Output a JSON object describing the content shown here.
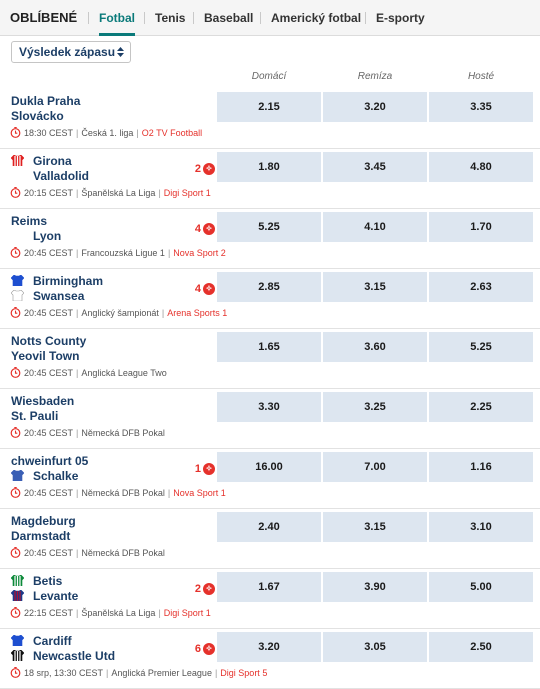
{
  "tabs": {
    "title": "OBLÍBENÉ",
    "items": [
      {
        "label": "Fotbal",
        "active": true
      },
      {
        "label": "Tenis",
        "active": false
      },
      {
        "label": "Baseball",
        "active": false
      },
      {
        "label": "Americký fotbal",
        "active": false
      },
      {
        "label": "E-sporty",
        "active": false
      }
    ]
  },
  "market_select": {
    "value": "Výsledek zápasu"
  },
  "columns": {
    "home": "Domácí",
    "draw": "Remíza",
    "away": "Hosté"
  },
  "colors": {
    "accent": "#0a7a7a",
    "odds_bg": "#dde6f0",
    "tv_red": "#e5312b",
    "team_blue": "#1c3e66"
  },
  "matches": [
    {
      "home": "Dukla Praha",
      "away": "Slovácko",
      "home_jersey": null,
      "away_jersey": null,
      "live_count": "",
      "odds": [
        "2.15",
        "3.20",
        "3.35"
      ],
      "time": "18:30 CEST",
      "league": "Česká 1. liga",
      "tv": "O2 TV Football"
    },
    {
      "home": "Girona",
      "away": "Valladolid",
      "home_jersey": {
        "primary": "#e02020",
        "stripe": "#ffffff"
      },
      "away_jersey": null,
      "live_count": "2",
      "odds": [
        "1.80",
        "3.45",
        "4.80"
      ],
      "time": "20:15 CEST",
      "league": "Španělská La Liga",
      "tv": "Digi Sport 1"
    },
    {
      "home": "Reims",
      "away": "Lyon",
      "home_jersey": null,
      "away_jersey": null,
      "live_count": "4",
      "odds": [
        "5.25",
        "4.10",
        "1.70"
      ],
      "time": "20:45 CEST",
      "league": "Francouzská Ligue 1",
      "tv": "Nova Sport 2"
    },
    {
      "home": "Birmingham",
      "away": "Swansea",
      "home_jersey": {
        "primary": "#1e4fd0",
        "stripe": null
      },
      "away_jersey": {
        "primary": "#ffffff",
        "stripe": null
      },
      "live_count": "4",
      "odds": [
        "2.85",
        "3.15",
        "2.63"
      ],
      "time": "20:45 CEST",
      "league": "Anglický šampionát",
      "tv": "Arena Sports 1"
    },
    {
      "home": "Notts County",
      "away": "Yeovil Town",
      "home_jersey": null,
      "away_jersey": null,
      "live_count": "",
      "odds": [
        "1.65",
        "3.60",
        "5.25"
      ],
      "time": "20:45 CEST",
      "league": "Anglická League Two",
      "tv": ""
    },
    {
      "home": "Wiesbaden",
      "away": "St. Pauli",
      "home_jersey": null,
      "away_jersey": null,
      "live_count": "",
      "odds": [
        "3.30",
        "3.25",
        "2.25"
      ],
      "time": "20:45 CEST",
      "league": "Německá DFB Pokal",
      "tv": ""
    },
    {
      "home": "chweinfurt 05",
      "away": "Schalke",
      "home_jersey": null,
      "away_jersey": {
        "primary": "#3a5fb5",
        "stripe": null
      },
      "live_count": "1",
      "odds": [
        "16.00",
        "7.00",
        "1.16"
      ],
      "time": "20:45 CEST",
      "league": "Německá DFB Pokal",
      "tv": "Nova Sport 1"
    },
    {
      "home": "Magdeburg",
      "away": "Darmstadt",
      "home_jersey": null,
      "away_jersey": null,
      "live_count": "",
      "odds": [
        "2.40",
        "3.15",
        "3.10"
      ],
      "time": "20:45 CEST",
      "league": "Německá DFB Pokal",
      "tv": ""
    },
    {
      "home": "Betis",
      "away": "Levante",
      "home_jersey": {
        "primary": "#0d8a3a",
        "stripe": "#ffffff"
      },
      "away_jersey": {
        "primary": "#1d3a8a",
        "stripe": "#b01030"
      },
      "live_count": "2",
      "odds": [
        "1.67",
        "3.90",
        "5.00"
      ],
      "time": "22:15 CEST",
      "league": "Španělská La Liga",
      "tv": "Digi Sport 1"
    },
    {
      "home": "Cardiff",
      "away": "Newcastle Utd",
      "home_jersey": {
        "primary": "#1e4fd0",
        "stripe": null
      },
      "away_jersey": {
        "primary": "#111111",
        "stripe": "#ffffff"
      },
      "live_count": "6",
      "odds": [
        "3.20",
        "3.05",
        "2.50"
      ],
      "time": "18 srp, 13:30 CEST",
      "league": "Anglická Premier League",
      "tv": "Digi Sport 5"
    }
  ]
}
